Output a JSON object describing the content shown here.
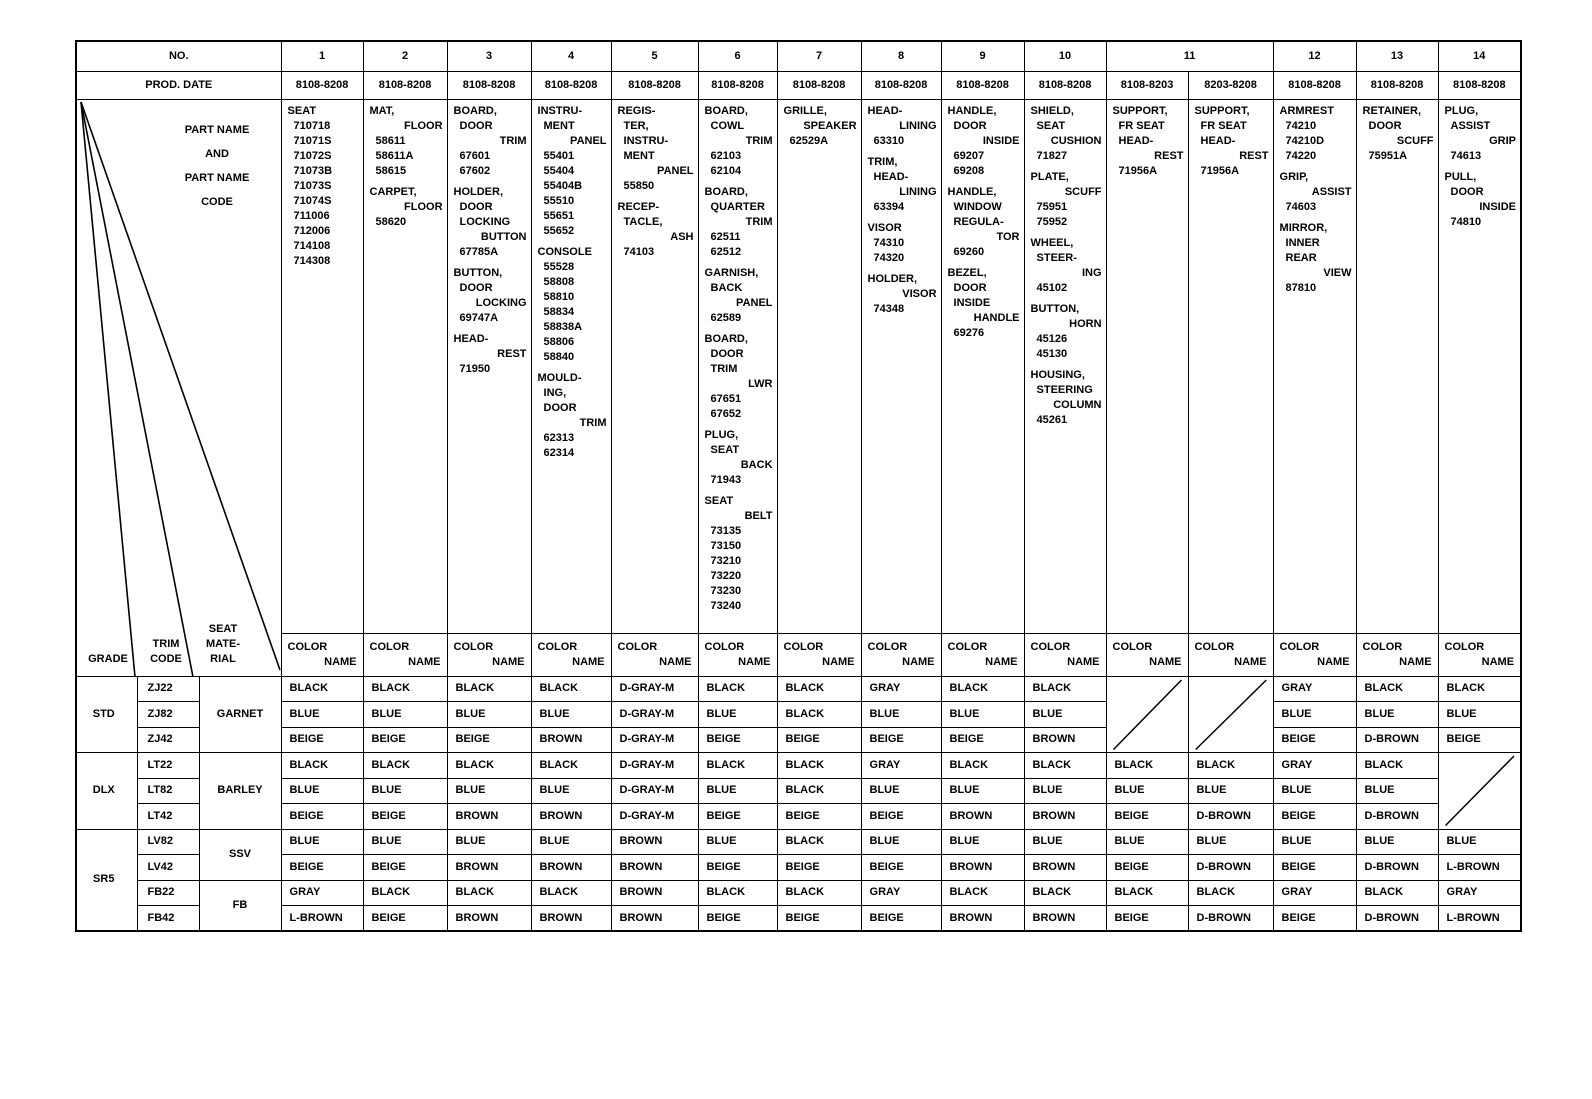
{
  "header": {
    "no_label": "NO.",
    "prod_date_label": "PROD. DATE",
    "numbers": [
      "1",
      "2",
      "3",
      "4",
      "5",
      "6",
      "7",
      "8",
      "9",
      "10",
      "11",
      "12",
      "13",
      "14"
    ],
    "prod_dates": [
      "8108-8208",
      "8108-8208",
      "8108-8208",
      "8108-8208",
      "8108-8208",
      "8108-8208",
      "8108-8208",
      "8108-8208",
      "8108-8208",
      "8108-8208",
      "8108-8203",
      "8203-8208",
      "8108-8208",
      "8108-8208",
      "8108-8208"
    ]
  },
  "left_header": {
    "part_name_lines": [
      "PART NAME",
      "AND",
      "PART NAME",
      "CODE"
    ],
    "grade": "GRADE",
    "trim_code": [
      "TRIM",
      "CODE"
    ],
    "seat_material": [
      "SEAT",
      "MATE-",
      "RIAL"
    ]
  },
  "color_name_header": [
    "COLOR",
    "NAME"
  ],
  "parts": [
    [
      {
        "name": [
          "SEAT"
        ],
        "codes": [
          "710718",
          "71071S",
          "71072S",
          "71073B",
          "71073S",
          "71074S",
          "711006",
          "712006",
          "714108",
          "714308"
        ]
      }
    ],
    [
      {
        "name": [
          "MAT,",
          "FLOOR"
        ],
        "codes": [
          "58611",
          "58611A",
          "58615"
        ]
      },
      {
        "name": [
          "CARPET,",
          "FLOOR"
        ],
        "codes": [
          "58620"
        ]
      }
    ],
    [
      {
        "name": [
          "BOARD,",
          "DOOR",
          "TRIM"
        ],
        "codes": [
          "67601",
          "67602"
        ]
      },
      {
        "name": [
          "HOLDER,",
          "DOOR",
          "LOCKING",
          "BUTTON"
        ],
        "codes": [
          "67785A"
        ]
      },
      {
        "name": [
          "BUTTON,",
          "DOOR",
          "LOCKING"
        ],
        "codes": [
          "69747A"
        ]
      },
      {
        "name": [
          "HEAD-",
          "REST"
        ],
        "codes": [
          "71950"
        ]
      }
    ],
    [
      {
        "name": [
          "INSTRU-",
          "MENT",
          "PANEL"
        ],
        "codes": [
          "55401",
          "55404",
          "55404B",
          "55510",
          "55651",
          "55652"
        ]
      },
      {
        "name": [
          "CONSOLE"
        ],
        "codes": [
          "55528",
          "58808",
          "58810",
          "58834",
          "58838A",
          "58806",
          "58840"
        ]
      },
      {
        "name": [
          "MOULD-",
          "ING,",
          "DOOR",
          "TRIM"
        ],
        "codes": [
          "62313",
          "62314"
        ]
      }
    ],
    [
      {
        "name": [
          "REGIS-",
          "TER,",
          "INSTRU-",
          "MENT",
          "PANEL"
        ],
        "codes": [
          "55850"
        ]
      },
      {
        "name": [
          "RECEP-",
          "TACLE,",
          "ASH"
        ],
        "codes": [
          "74103"
        ]
      }
    ],
    [
      {
        "name": [
          "BOARD,",
          "COWL",
          "TRIM"
        ],
        "codes": [
          "62103",
          "62104"
        ]
      },
      {
        "name": [
          "BOARD,",
          "QUARTER",
          "TRIM"
        ],
        "codes": [
          "62511",
          "62512"
        ]
      },
      {
        "name": [
          "GARNISH,",
          "BACK",
          "PANEL"
        ],
        "codes": [
          "62589"
        ]
      },
      {
        "name": [
          "BOARD,",
          "DOOR",
          "TRIM",
          "LWR"
        ],
        "codes": [
          "67651",
          "67652"
        ]
      },
      {
        "name": [
          "PLUG,",
          "SEAT",
          "BACK"
        ],
        "codes": [
          "71943"
        ]
      },
      {
        "name": [
          "SEAT",
          "BELT"
        ],
        "codes": [
          "73135",
          "73150",
          "73210",
          "73220",
          "73230",
          "73240"
        ]
      }
    ],
    [
      {
        "name": [
          "GRILLE,",
          "SPEAKER"
        ],
        "codes": [
          "62529A"
        ]
      }
    ],
    [
      {
        "name": [
          "HEAD-",
          "LINING"
        ],
        "codes": [
          "63310"
        ]
      },
      {
        "name": [
          "TRIM,",
          "HEAD-",
          "LINING"
        ],
        "codes": [
          "63394"
        ]
      },
      {
        "name": [
          "VISOR"
        ],
        "codes": [
          "74310",
          "74320"
        ]
      },
      {
        "name": [
          "HOLDER,",
          "VISOR"
        ],
        "codes": [
          "74348"
        ]
      }
    ],
    [
      {
        "name": [
          "HANDLE,",
          "DOOR",
          "INSIDE"
        ],
        "codes": [
          "69207",
          "69208"
        ]
      },
      {
        "name": [
          "HANDLE,",
          "WINDOW",
          "REGULA-",
          "TOR"
        ],
        "codes": [
          "69260"
        ]
      },
      {
        "name": [
          "BEZEL,",
          "DOOR",
          "INSIDE",
          "HANDLE"
        ],
        "codes": [
          "69276"
        ]
      }
    ],
    [
      {
        "name": [
          "SHIELD,",
          "SEAT",
          "CUSHION"
        ],
        "codes": [
          "71827"
        ]
      },
      {
        "name": [
          "PLATE,",
          "SCUFF"
        ],
        "codes": [
          "75951",
          "75952"
        ]
      },
      {
        "name": [
          "WHEEL,",
          "STEER-",
          "ING"
        ],
        "codes": [
          "45102"
        ]
      },
      {
        "name": [
          "BUTTON,",
          "HORN"
        ],
        "codes": [
          "45126",
          "45130"
        ]
      },
      {
        "name": [
          "HOUSING,",
          "STEERING",
          "COLUMN"
        ],
        "codes": [
          "45261"
        ]
      }
    ],
    [
      {
        "name": [
          "SUPPORT,",
          "FR SEAT",
          "HEAD-",
          "REST"
        ],
        "codes": [
          "71956A"
        ]
      }
    ],
    [
      {
        "name": [
          "SUPPORT,",
          "FR SEAT",
          "HEAD-",
          "REST"
        ],
        "codes": [
          "71956A"
        ]
      }
    ],
    [
      {
        "name": [
          "ARMREST"
        ],
        "codes": [
          "74210",
          "74210D",
          "74220"
        ]
      },
      {
        "name": [
          "GRIP,",
          "ASSIST"
        ],
        "codes": [
          "74603"
        ]
      },
      {
        "name": [
          "MIRROR,",
          "INNER",
          "REAR",
          "VIEW"
        ],
        "codes": [
          "87810"
        ]
      }
    ],
    [
      {
        "name": [
          "RETAINER,",
          "DOOR",
          "SCUFF"
        ],
        "codes": [
          "75951A"
        ]
      }
    ],
    [
      {
        "name": [
          "PLUG,",
          "ASSIST",
          "GRIP"
        ],
        "codes": [
          "74613"
        ]
      },
      {
        "name": [
          "PULL,",
          "DOOR",
          "INSIDE"
        ],
        "codes": [
          "74810"
        ]
      }
    ]
  ],
  "grades": [
    {
      "grade": "STD",
      "groups": [
        {
          "material": "GARNET",
          "trims": [
            {
              "code": "ZJ22",
              "colors": [
                "BLACK",
                "BLACK",
                "BLACK",
                "BLACK",
                "D-GRAY-M",
                "BLACK",
                "BLACK",
                "GRAY",
                "BLACK",
                "BLACK",
                null,
                null,
                "GRAY",
                "BLACK",
                "BLACK"
              ]
            },
            {
              "code": "ZJ82",
              "colors": [
                "BLUE",
                "BLUE",
                "BLUE",
                "BLUE",
                "D-GRAY-M",
                "BLUE",
                "BLACK",
                "BLUE",
                "BLUE",
                "BLUE",
                null,
                null,
                "BLUE",
                "BLUE",
                "BLUE"
              ]
            },
            {
              "code": "ZJ42",
              "colors": [
                "BEIGE",
                "BEIGE",
                "BEIGE",
                "BROWN",
                "D-GRAY-M",
                "BEIGE",
                "BEIGE",
                "BEIGE",
                "BEIGE",
                "BROWN",
                null,
                null,
                "BEIGE",
                "D-BROWN",
                "BEIGE"
              ]
            }
          ]
        }
      ]
    },
    {
      "grade": "DLX",
      "groups": [
        {
          "material": "BARLEY",
          "trims": [
            {
              "code": "LT22",
              "colors": [
                "BLACK",
                "BLACK",
                "BLACK",
                "BLACK",
                "D-GRAY-M",
                "BLACK",
                "BLACK",
                "GRAY",
                "BLACK",
                "BLACK",
                "BLACK",
                "BLACK",
                "GRAY",
                "BLACK",
                null
              ]
            },
            {
              "code": "LT82",
              "colors": [
                "BLUE",
                "BLUE",
                "BLUE",
                "BLUE",
                "D-GRAY-M",
                "BLUE",
                "BLACK",
                "BLUE",
                "BLUE",
                "BLUE",
                "BLUE",
                "BLUE",
                "BLUE",
                "BLUE",
                null
              ]
            },
            {
              "code": "LT42",
              "colors": [
                "BEIGE",
                "BEIGE",
                "BROWN",
                "BROWN",
                "D-GRAY-M",
                "BEIGE",
                "BEIGE",
                "BEIGE",
                "BROWN",
                "BROWN",
                "BEIGE",
                "D-BROWN",
                "BEIGE",
                "D-BROWN",
                null
              ]
            }
          ]
        }
      ]
    },
    {
      "grade": "SR5",
      "groups": [
        {
          "material": "SSV",
          "trims": [
            {
              "code": "LV82",
              "colors": [
                "BLUE",
                "BLUE",
                "BLUE",
                "BLUE",
                "BROWN",
                "BLUE",
                "BLACK",
                "BLUE",
                "BLUE",
                "BLUE",
                "BLUE",
                "BLUE",
                "BLUE",
                "BLUE",
                "BLUE"
              ]
            },
            {
              "code": "LV42",
              "colors": [
                "BEIGE",
                "BEIGE",
                "BROWN",
                "BROWN",
                "BROWN",
                "BEIGE",
                "BEIGE",
                "BEIGE",
                "BROWN",
                "BROWN",
                "BEIGE",
                "D-BROWN",
                "BEIGE",
                "D-BROWN",
                "L-BROWN"
              ]
            }
          ]
        },
        {
          "material": "FB",
          "trims": [
            {
              "code": "FB22",
              "colors": [
                "GRAY",
                "BLACK",
                "BLACK",
                "BLACK",
                "BROWN",
                "BLACK",
                "BLACK",
                "GRAY",
                "BLACK",
                "BLACK",
                "BLACK",
                "BLACK",
                "GRAY",
                "BLACK",
                "GRAY"
              ]
            },
            {
              "code": "FB42",
              "colors": [
                "L-BROWN",
                "BEIGE",
                "BROWN",
                "BROWN",
                "BROWN",
                "BEIGE",
                "BEIGE",
                "BEIGE",
                "BROWN",
                "BROWN",
                "BEIGE",
                "D-BROWN",
                "BEIGE",
                "D-BROWN",
                "L-BROWN"
              ]
            }
          ]
        }
      ]
    }
  ]
}
